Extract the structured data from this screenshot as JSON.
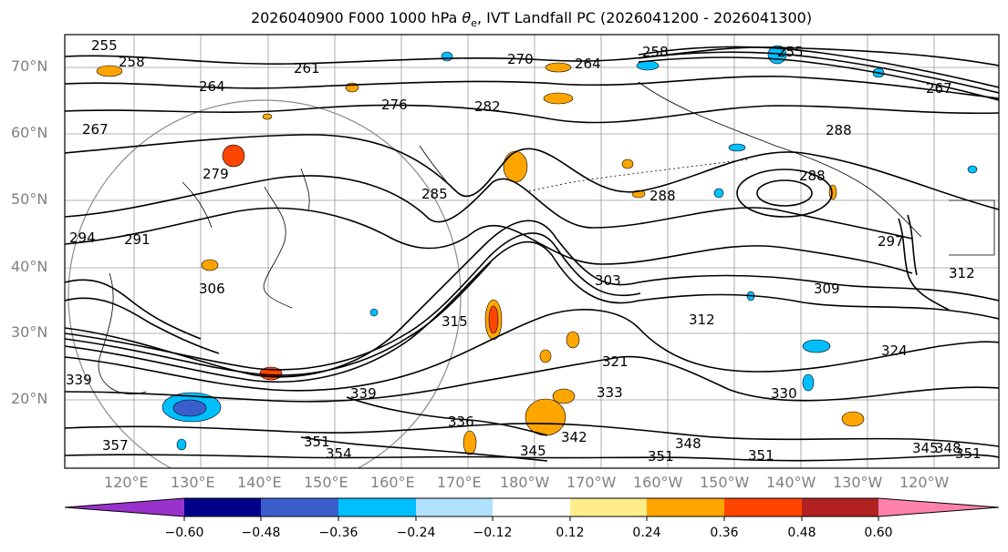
{
  "title": {
    "prefix": "2026040900 F000 1000 hPa",
    "symbol": "θ",
    "subscript": "e",
    "suffix": ", IVT Landfall PC (2026041200 - 2026041300)"
  },
  "lat_labels": [
    "70°N",
    "60°N",
    "50°N",
    "40°N",
    "30°N",
    "20°N"
  ],
  "lon_labels": [
    "120°E",
    "130°E",
    "140°E",
    "150°E",
    "160°E",
    "170°E",
    "180°W",
    "170°W",
    "160°W",
    "150°W",
    "140°W",
    "130°W",
    "120°W"
  ],
  "contour_labels": [
    "255",
    "258",
    "258",
    "255",
    "264",
    "264",
    "261",
    "270",
    "267",
    "267",
    "276",
    "282",
    "279",
    "288",
    "288",
    "285",
    "288",
    "291",
    "294",
    "297",
    "303",
    "309",
    "306",
    "312",
    "312",
    "315",
    "321",
    "324",
    "330",
    "333",
    "336",
    "339",
    "342",
    "345",
    "345",
    "348",
    "348",
    "351",
    "351",
    "351",
    "351",
    "354",
    "339",
    "357"
  ],
  "colorbar": {
    "ticks": [
      "−0.60",
      "−0.48",
      "−0.36",
      "−0.24",
      "−0.12",
      "0.12",
      "0.24",
      "0.36",
      "0.48",
      "0.60"
    ],
    "colors": {
      "under": "#9932cc",
      "b1": "#00008b",
      "b2": "#3a5fcd",
      "b3": "#00bfff",
      "b4": "#b0e2ff",
      "mid": "#ffffff",
      "p1": "#ffec8b",
      "p2": "#ffa500",
      "p3": "#ff4500",
      "p4": "#b22222",
      "over": "#ff82ab"
    }
  }
}
